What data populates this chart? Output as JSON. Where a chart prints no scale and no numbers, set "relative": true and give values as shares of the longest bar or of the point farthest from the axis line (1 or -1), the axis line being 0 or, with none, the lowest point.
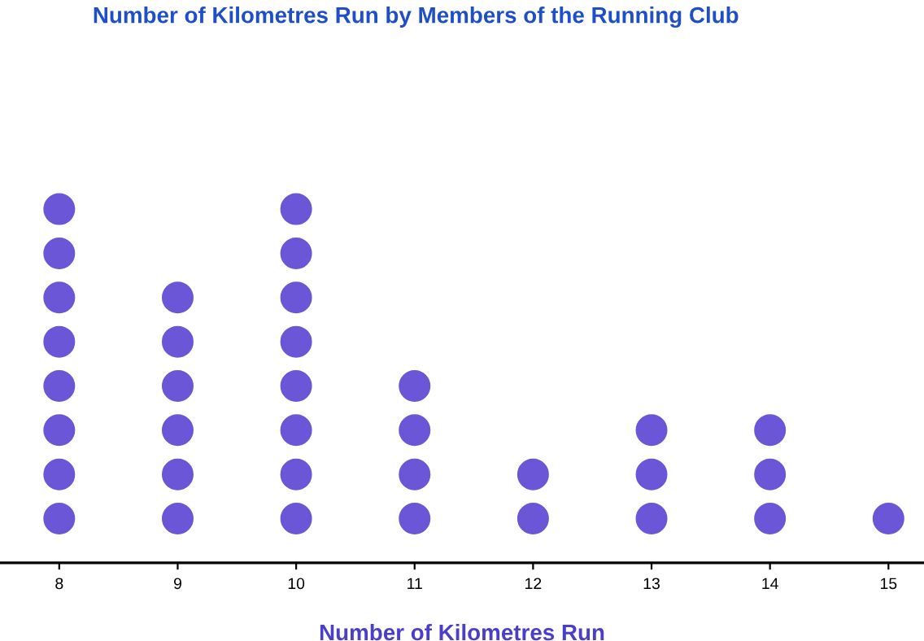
{
  "chart_data": {
    "type": "scatter",
    "title": "Number of Kilometres Run by Members of the Running Club",
    "xlabel": "Number of Kilometres Run",
    "relative": true,
    "marker": "circle",
    "tick_labels": "x",
    "grid": false,
    "xlim": [
      7.5,
      15.3
    ],
    "xticks": [
      8,
      9,
      10,
      11,
      12,
      13,
      14,
      15
    ],
    "series": [
      {
        "color": "#6a56d6",
        "x": [
          8,
          8,
          8,
          8,
          8,
          8,
          8,
          8,
          9,
          9,
          9,
          9,
          9,
          9,
          10,
          10,
          10,
          10,
          10,
          10,
          10,
          10,
          11,
          11,
          11,
          11,
          12,
          12,
          13,
          13,
          13,
          14,
          14,
          14,
          15
        ],
        "values": [
          0.125,
          0.25,
          0.375,
          0.5,
          0.625,
          0.75,
          0.875,
          1,
          0.125,
          0.25,
          0.375,
          0.5,
          0.625,
          0.75,
          0.125,
          0.25,
          0.375,
          0.5,
          0.625,
          0.75,
          0.875,
          1,
          0.125,
          0.25,
          0.375,
          0.5,
          0.125,
          0.25,
          0.125,
          0.25,
          0.375,
          0.125,
          0.25,
          0.375,
          0.125
        ]
      }
    ]
  }
}
